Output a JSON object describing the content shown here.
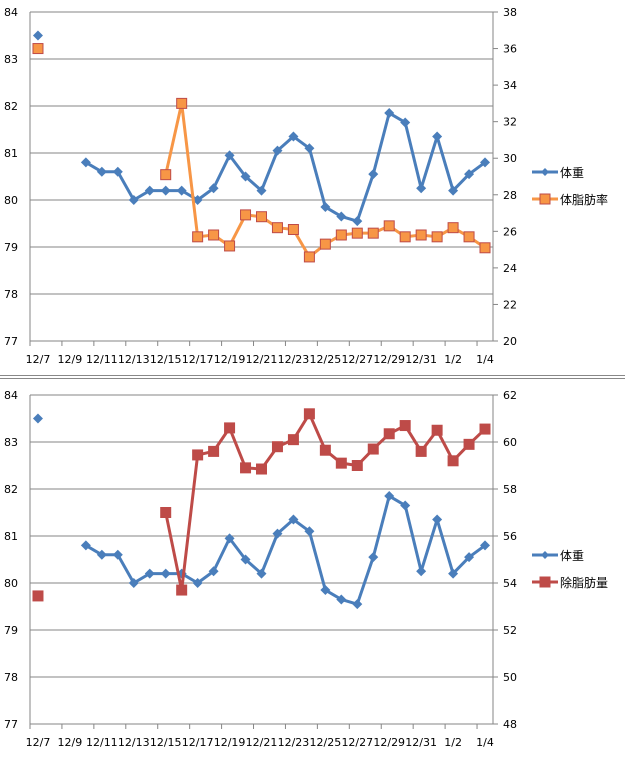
{
  "chart_data": [
    {
      "type": "line",
      "categories": [
        "12/7",
        "12/8",
        "12/9",
        "12/10",
        "12/11",
        "12/12",
        "12/13",
        "12/14",
        "12/15",
        "12/16",
        "12/17",
        "12/18",
        "12/19",
        "12/20",
        "12/21",
        "12/22",
        "12/23",
        "12/24",
        "12/25",
        "12/26",
        "12/27",
        "12/28",
        "12/29",
        "12/30",
        "12/31",
        "1/1",
        "1/2",
        "1/3",
        "1/4"
      ],
      "tick_labels": [
        "12/7",
        "12/9",
        "12/11",
        "12/13",
        "12/15",
        "12/17",
        "12/19",
        "12/21",
        "12/23",
        "12/25",
        "12/27",
        "12/29",
        "12/31",
        "1/2",
        "1/4"
      ],
      "ylim": [
        77,
        84
      ],
      "y2lim": [
        20,
        38
      ],
      "yticks": [
        77,
        78,
        79,
        80,
        81,
        82,
        83,
        84
      ],
      "y2ticks": [
        20,
        22,
        24,
        26,
        28,
        30,
        32,
        34,
        36,
        38
      ],
      "grid": true,
      "legend_position": "right",
      "series": [
        {
          "name": "体重",
          "axis": "left",
          "color": "#4a7ebb",
          "marker": "diamond",
          "values": [
            83.5,
            null,
            null,
            80.8,
            80.6,
            80.6,
            80.0,
            80.2,
            80.2,
            80.2,
            80.0,
            80.25,
            80.95,
            80.5,
            80.2,
            81.05,
            81.35,
            81.1,
            79.85,
            79.65,
            79.55,
            80.55,
            81.85,
            81.65,
            80.25,
            81.35,
            80.2,
            80.55,
            80.8
          ]
        },
        {
          "name": "体脂肪率",
          "axis": "right",
          "color": "#f79646",
          "marker_edge": "#be4b48",
          "marker": "square",
          "values": [
            36.0,
            null,
            null,
            null,
            null,
            null,
            null,
            null,
            29.1,
            33.0,
            25.7,
            25.8,
            25.2,
            26.9,
            26.8,
            26.2,
            26.1,
            24.6,
            25.3,
            25.8,
            25.9,
            25.9,
            26.3,
            25.7,
            25.8,
            25.7,
            26.2,
            25.7,
            25.1
          ]
        }
      ]
    },
    {
      "type": "line",
      "categories": [
        "12/7",
        "12/8",
        "12/9",
        "12/10",
        "12/11",
        "12/12",
        "12/13",
        "12/14",
        "12/15",
        "12/16",
        "12/17",
        "12/18",
        "12/19",
        "12/20",
        "12/21",
        "12/22",
        "12/23",
        "12/24",
        "12/25",
        "12/26",
        "12/27",
        "12/28",
        "12/29",
        "12/30",
        "12/31",
        "1/1",
        "1/2",
        "1/3",
        "1/4"
      ],
      "tick_labels": [
        "12/7",
        "12/9",
        "12/11",
        "12/13",
        "12/15",
        "12/17",
        "12/19",
        "12/21",
        "12/23",
        "12/25",
        "12/27",
        "12/29",
        "12/31",
        "1/2",
        "1/4"
      ],
      "ylim": [
        77,
        84
      ],
      "y2lim": [
        48,
        62
      ],
      "yticks": [
        77,
        78,
        79,
        80,
        81,
        82,
        83,
        84
      ],
      "y2ticks": [
        48,
        50,
        52,
        54,
        56,
        58,
        60,
        62
      ],
      "grid": true,
      "legend_position": "right",
      "series": [
        {
          "name": "体重",
          "axis": "left",
          "color": "#4a7ebb",
          "marker": "diamond",
          "values": [
            83.5,
            null,
            null,
            80.8,
            80.6,
            80.6,
            80.0,
            80.2,
            80.2,
            80.2,
            80.0,
            80.25,
            80.95,
            80.5,
            80.2,
            81.05,
            81.35,
            81.1,
            79.85,
            79.65,
            79.55,
            80.55,
            81.85,
            81.65,
            80.25,
            81.35,
            80.2,
            80.55,
            80.8
          ]
        },
        {
          "name": "除脂肪量",
          "axis": "right",
          "color": "#be4b48",
          "marker": "square",
          "values": [
            53.45,
            null,
            null,
            null,
            null,
            null,
            null,
            null,
            57.0,
            53.7,
            59.45,
            59.6,
            60.6,
            58.9,
            58.85,
            59.8,
            60.1,
            61.2,
            59.65,
            59.1,
            59.0,
            59.7,
            60.35,
            60.7,
            59.6,
            60.5,
            59.2,
            59.9,
            60.55
          ]
        }
      ]
    }
  ]
}
